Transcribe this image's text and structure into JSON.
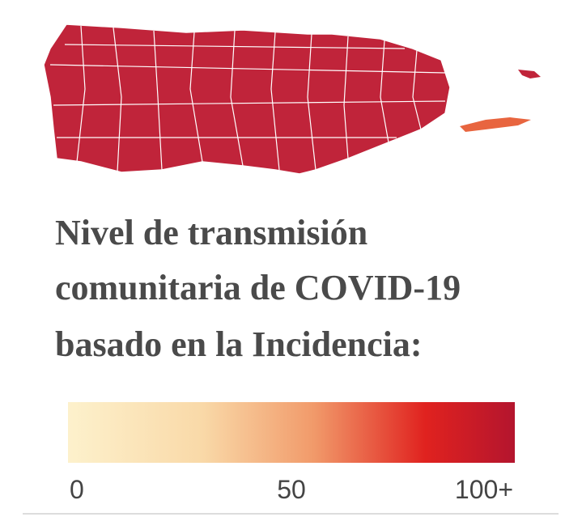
{
  "title": {
    "lines": [
      "Nivel de transmisión",
      "comunitaria de COVID-19",
      "basado en la Incidencia:"
    ]
  },
  "legend": {
    "range": [
      0,
      100
    ],
    "ticks": [
      0,
      50,
      {
        "value": 100,
        "label": "100+"
      }
    ]
  }
}
